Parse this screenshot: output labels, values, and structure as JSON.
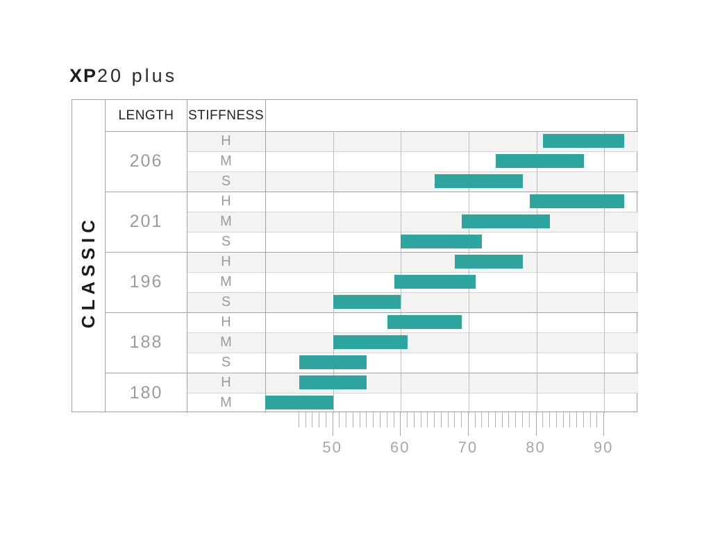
{
  "title": {
    "bold": "XP",
    "rest": "20 plus"
  },
  "chart_data": {
    "type": "bar",
    "orientation": "horizontal-range",
    "title": "XP20 plus",
    "category_label": "CLASSIC",
    "columns": [
      "LENGTH",
      "STIFFNESS"
    ],
    "bar_color": "#2EA59E",
    "x_axis": {
      "min": 40,
      "max": 95,
      "minor_tick_start": 45,
      "minor_tick_end": 90,
      "minor_tick_step": 1,
      "major_ticks": [
        50,
        60,
        70,
        80,
        90
      ],
      "major_tick_labels": [
        "50",
        "60",
        "70",
        "80",
        "90"
      ],
      "grid": "on"
    },
    "groups": [
      {
        "length": "206",
        "rows": [
          {
            "stiffness": "H",
            "range": [
              81,
              93
            ]
          },
          {
            "stiffness": "M",
            "range": [
              74,
              87
            ]
          },
          {
            "stiffness": "S",
            "range": [
              65,
              78
            ]
          }
        ]
      },
      {
        "length": "201",
        "rows": [
          {
            "stiffness": "H",
            "range": [
              79,
              93
            ]
          },
          {
            "stiffness": "M",
            "range": [
              69,
              82
            ]
          },
          {
            "stiffness": "S",
            "range": [
              60,
              72
            ]
          }
        ]
      },
      {
        "length": "196",
        "rows": [
          {
            "stiffness": "H",
            "range": [
              68,
              78
            ]
          },
          {
            "stiffness": "M",
            "range": [
              59,
              71
            ]
          },
          {
            "stiffness": "S",
            "range": [
              50,
              60
            ]
          }
        ]
      },
      {
        "length": "188",
        "rows": [
          {
            "stiffness": "H",
            "range": [
              58,
              69
            ]
          },
          {
            "stiffness": "M",
            "range": [
              50,
              61
            ]
          },
          {
            "stiffness": "S",
            "range": [
              45,
              55
            ]
          }
        ]
      },
      {
        "length": "180",
        "rows": [
          {
            "stiffness": "H",
            "range": [
              45,
              55
            ]
          },
          {
            "stiffness": "M",
            "range": [
              40,
              50
            ]
          }
        ]
      }
    ]
  }
}
